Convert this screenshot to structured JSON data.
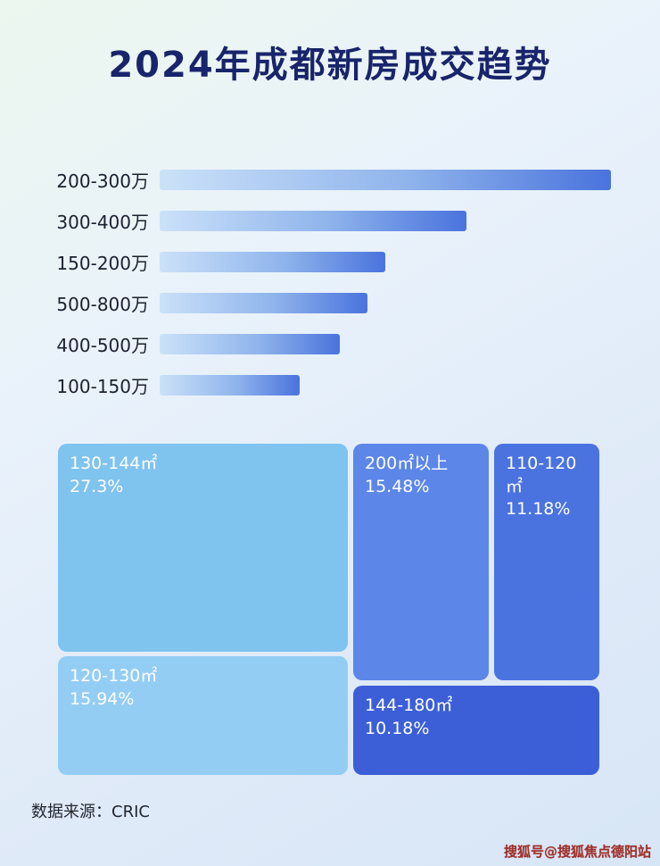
{
  "page": {
    "title": "2024年成都新房成交趋势",
    "source_note": "数据来源：CRIC",
    "watermark": "搜狐号@搜狐焦点德阳站"
  },
  "chart_data": [
    {
      "type": "bar",
      "orientation": "horizontal",
      "title": "2024年成都新房成交趋势",
      "categories": [
        "200-300万",
        "300-400万",
        "150-200万",
        "500-800万",
        "400-500万",
        "100-150万"
      ],
      "values": [
        100,
        68,
        50,
        46,
        40,
        31
      ],
      "values_unit": "relative length, % of longest bar (no numeric axis shown in image)",
      "bar_gradient": [
        "#cbe1f9",
        "#4a73dd"
      ],
      "grid": false,
      "legend": false
    },
    {
      "type": "treemap",
      "items": [
        {
          "label": "130-144㎡",
          "pct": 27.3,
          "pct_label": "27.3%",
          "color": "#7fc3ef"
        },
        {
          "label": "200㎡以上",
          "pct": 15.48,
          "pct_label": "15.48%",
          "color": "#5c86e8"
        },
        {
          "label": "110-120㎡",
          "pct": 11.18,
          "pct_label": "11.18%",
          "color": "#4a73e0"
        },
        {
          "label": "120-130㎡",
          "pct": 15.94,
          "pct_label": "15.94%",
          "color": "#93cdf4"
        },
        {
          "label": "144-180㎡",
          "pct": 10.18,
          "pct_label": "10.18%",
          "color": "#3c5fd8"
        }
      ]
    }
  ]
}
